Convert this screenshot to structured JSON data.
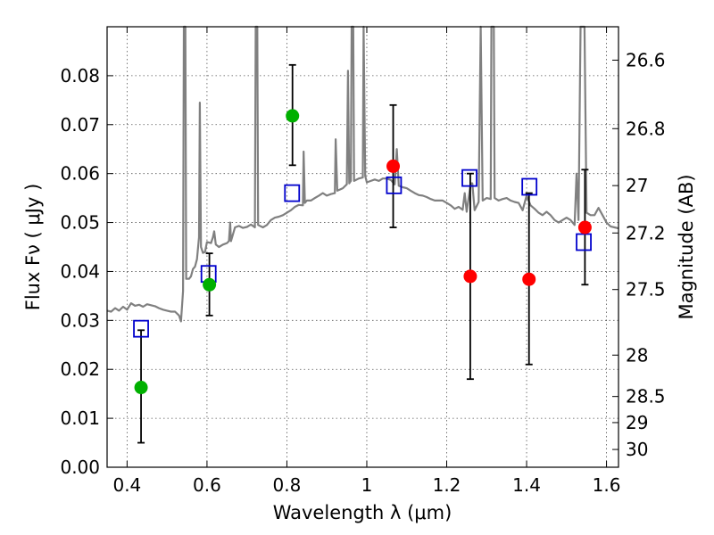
{
  "chart_data": {
    "type": "scatter",
    "xlabel": "Wavelength  λ (μm)",
    "ylabel_left": "Flux  Fν  ( μJy )",
    "ylabel_right": "Magnitude (AB)",
    "xlim": [
      0.35,
      1.63
    ],
    "ylim": [
      0.0,
      0.09
    ],
    "grid": true,
    "x_ticks": [
      {
        "v": 0.4,
        "label": "0.4"
      },
      {
        "v": 0.6,
        "label": "0.6"
      },
      {
        "v": 0.8,
        "label": "0.8"
      },
      {
        "v": 1.0,
        "label": "1"
      },
      {
        "v": 1.2,
        "label": "1.2"
      },
      {
        "v": 1.4,
        "label": "1.4"
      },
      {
        "v": 1.6,
        "label": "1.6"
      }
    ],
    "y_ticks": [
      {
        "v": 0.0,
        "label": "0.00"
      },
      {
        "v": 0.01,
        "label": "0.01"
      },
      {
        "v": 0.02,
        "label": "0.02"
      },
      {
        "v": 0.03,
        "label": "0.03"
      },
      {
        "v": 0.04,
        "label": "0.04"
      },
      {
        "v": 0.05,
        "label": "0.05"
      },
      {
        "v": 0.06,
        "label": "0.06"
      },
      {
        "v": 0.07,
        "label": "0.07"
      },
      {
        "v": 0.08,
        "label": "0.08"
      }
    ],
    "mag_ticks": [
      {
        "mag": 26.6,
        "label": "26.6"
      },
      {
        "mag": 26.8,
        "label": "26.8"
      },
      {
        "mag": 27.0,
        "label": "27"
      },
      {
        "mag": 27.2,
        "label": "27.2"
      },
      {
        "mag": 27.5,
        "label": "27.5"
      },
      {
        "mag": 28.0,
        "label": "28"
      },
      {
        "mag": 28.5,
        "label": "28.5"
      },
      {
        "mag": 29.0,
        "label": "29"
      },
      {
        "mag": 30.0,
        "label": "30"
      }
    ],
    "colors": {
      "spectrum": "#808080",
      "green": "#00b000",
      "red": "#ff0000",
      "model_box": "#0000cc",
      "errorbar": "#000000"
    },
    "spectrum": {
      "name": "",
      "points": [
        [
          0.35,
          0.032
        ],
        [
          0.36,
          0.0318
        ],
        [
          0.37,
          0.0325
        ],
        [
          0.38,
          0.032
        ],
        [
          0.39,
          0.0328
        ],
        [
          0.4,
          0.0322
        ],
        [
          0.41,
          0.0335
        ],
        [
          0.42,
          0.033
        ],
        [
          0.43,
          0.0332
        ],
        [
          0.44,
          0.0328
        ],
        [
          0.45,
          0.0333
        ],
        [
          0.46,
          0.0331
        ],
        [
          0.47,
          0.0329
        ],
        [
          0.48,
          0.0325
        ],
        [
          0.49,
          0.0322
        ],
        [
          0.5,
          0.032
        ],
        [
          0.51,
          0.0318
        ],
        [
          0.52,
          0.0318
        ],
        [
          0.53,
          0.031
        ],
        [
          0.535,
          0.0298
        ],
        [
          0.54,
          0.036
        ],
        [
          0.542,
          0.09
        ],
        [
          0.546,
          0.09
        ],
        [
          0.548,
          0.0385
        ],
        [
          0.555,
          0.0385
        ],
        [
          0.56,
          0.039
        ],
        [
          0.565,
          0.0405
        ],
        [
          0.57,
          0.041
        ],
        [
          0.575,
          0.0425
        ],
        [
          0.58,
          0.047
        ],
        [
          0.582,
          0.0745
        ],
        [
          0.585,
          0.045
        ],
        [
          0.59,
          0.0438
        ],
        [
          0.595,
          0.044
        ],
        [
          0.6,
          0.046
        ],
        [
          0.61,
          0.0458
        ],
        [
          0.615,
          0.047
        ],
        [
          0.618,
          0.0482
        ],
        [
          0.622,
          0.0455
        ],
        [
          0.63,
          0.045
        ],
        [
          0.64,
          0.0455
        ],
        [
          0.65,
          0.0458
        ],
        [
          0.655,
          0.0462
        ],
        [
          0.658,
          0.05
        ],
        [
          0.66,
          0.0462
        ],
        [
          0.67,
          0.049
        ],
        [
          0.68,
          0.0493
        ],
        [
          0.69,
          0.0489
        ],
        [
          0.7,
          0.0491
        ],
        [
          0.71,
          0.0496
        ],
        [
          0.72,
          0.049
        ],
        [
          0.722,
          0.09
        ],
        [
          0.726,
          0.09
        ],
        [
          0.728,
          0.0495
        ],
        [
          0.74,
          0.049
        ],
        [
          0.75,
          0.0495
        ],
        [
          0.76,
          0.0505
        ],
        [
          0.77,
          0.051
        ],
        [
          0.78,
          0.0512
        ],
        [
          0.79,
          0.0515
        ],
        [
          0.8,
          0.052
        ],
        [
          0.81,
          0.0525
        ],
        [
          0.82,
          0.0532
        ],
        [
          0.83,
          0.0536
        ],
        [
          0.84,
          0.0535
        ],
        [
          0.842,
          0.0645
        ],
        [
          0.845,
          0.054
        ],
        [
          0.85,
          0.0545
        ],
        [
          0.86,
          0.0545
        ],
        [
          0.87,
          0.055
        ],
        [
          0.88,
          0.0555
        ],
        [
          0.89,
          0.056
        ],
        [
          0.9,
          0.0555
        ],
        [
          0.91,
          0.0558
        ],
        [
          0.92,
          0.056
        ],
        [
          0.922,
          0.067
        ],
        [
          0.926,
          0.0565
        ],
        [
          0.94,
          0.057
        ],
        [
          0.95,
          0.0578
        ],
        [
          0.953,
          0.081
        ],
        [
          0.956,
          0.058
        ],
        [
          0.96,
          0.0585
        ],
        [
          0.962,
          0.09
        ],
        [
          0.966,
          0.09
        ],
        [
          0.968,
          0.0585
        ],
        [
          0.98,
          0.059
        ],
        [
          0.99,
          0.0592
        ],
        [
          0.992,
          0.09
        ],
        [
          0.996,
          0.0595
        ],
        [
          1.0,
          0.0582
        ],
        [
          1.01,
          0.0585
        ],
        [
          1.02,
          0.0588
        ],
        [
          1.03,
          0.0585
        ],
        [
          1.04,
          0.059
        ],
        [
          1.05,
          0.059
        ],
        [
          1.06,
          0.0587
        ],
        [
          1.07,
          0.0578
        ],
        [
          1.075,
          0.065
        ],
        [
          1.08,
          0.0575
        ],
        [
          1.09,
          0.0572
        ],
        [
          1.1,
          0.057
        ],
        [
          1.11,
          0.0565
        ],
        [
          1.12,
          0.056
        ],
        [
          1.13,
          0.0556
        ],
        [
          1.14,
          0.0555
        ],
        [
          1.15,
          0.0552
        ],
        [
          1.16,
          0.0548
        ],
        [
          1.17,
          0.0545
        ],
        [
          1.18,
          0.0545
        ],
        [
          1.19,
          0.0545
        ],
        [
          1.2,
          0.054
        ],
        [
          1.21,
          0.0535
        ],
        [
          1.22,
          0.0528
        ],
        [
          1.23,
          0.0532
        ],
        [
          1.24,
          0.0526
        ],
        [
          1.245,
          0.056
        ],
        [
          1.25,
          0.0522
        ],
        [
          1.26,
          0.058
        ],
        [
          1.264,
          0.058
        ],
        [
          1.27,
          0.0525
        ],
        [
          1.28,
          0.0542
        ],
        [
          1.285,
          0.09
        ],
        [
          1.29,
          0.0545
        ],
        [
          1.3,
          0.055
        ],
        [
          1.31,
          0.0548
        ],
        [
          1.312,
          0.09
        ],
        [
          1.318,
          0.09
        ],
        [
          1.32,
          0.055
        ],
        [
          1.33,
          0.0545
        ],
        [
          1.34,
          0.0548
        ],
        [
          1.35,
          0.055
        ],
        [
          1.36,
          0.0545
        ],
        [
          1.37,
          0.0542
        ],
        [
          1.38,
          0.054
        ],
        [
          1.39,
          0.0525
        ],
        [
          1.4,
          0.0555
        ],
        [
          1.41,
          0.0535
        ],
        [
          1.42,
          0.0528
        ],
        [
          1.43,
          0.052
        ],
        [
          1.44,
          0.0515
        ],
        [
          1.45,
          0.0522
        ],
        [
          1.46,
          0.0515
        ],
        [
          1.47,
          0.0505
        ],
        [
          1.48,
          0.05
        ],
        [
          1.49,
          0.0505
        ],
        [
          1.5,
          0.051
        ],
        [
          1.51,
          0.0505
        ],
        [
          1.52,
          0.0495
        ],
        [
          1.525,
          0.06
        ],
        [
          1.53,
          0.0505
        ],
        [
          1.535,
          0.09
        ],
        [
          1.545,
          0.09
        ],
        [
          1.55,
          0.052
        ],
        [
          1.56,
          0.0515
        ],
        [
          1.57,
          0.0515
        ],
        [
          1.58,
          0.053
        ],
        [
          1.59,
          0.0515
        ],
        [
          1.6,
          0.05
        ],
        [
          1.61,
          0.0492
        ],
        [
          1.62,
          0.049
        ],
        [
          1.63,
          0.0488
        ]
      ]
    },
    "observed": [
      {
        "x": 0.435,
        "y": 0.0163,
        "yerr_lo": 0.005,
        "yerr_hi": 0.028,
        "color": "green"
      },
      {
        "x": 0.606,
        "y": 0.0373,
        "yerr_lo": 0.031,
        "yerr_hi": 0.0437,
        "color": "green"
      },
      {
        "x": 0.814,
        "y": 0.0718,
        "yerr_lo": 0.0617,
        "yerr_hi": 0.0822,
        "color": "green"
      },
      {
        "x": 1.066,
        "y": 0.0615,
        "yerr_lo": 0.049,
        "yerr_hi": 0.074,
        "color": "red"
      },
      {
        "x": 1.259,
        "y": 0.039,
        "yerr_lo": 0.018,
        "yerr_hi": 0.06,
        "color": "red"
      },
      {
        "x": 1.406,
        "y": 0.0384,
        "yerr_lo": 0.021,
        "yerr_hi": 0.056,
        "color": "red"
      },
      {
        "x": 1.546,
        "y": 0.049,
        "yerr_lo": 0.0373,
        "yerr_hi": 0.0608,
        "color": "red"
      }
    ],
    "model": [
      {
        "x": 0.435,
        "y": 0.0283
      },
      {
        "x": 0.604,
        "y": 0.0395
      },
      {
        "x": 0.813,
        "y": 0.056
      },
      {
        "x": 1.068,
        "y": 0.0576
      },
      {
        "x": 1.257,
        "y": 0.0591
      },
      {
        "x": 1.407,
        "y": 0.0573
      },
      {
        "x": 1.543,
        "y": 0.046
      }
    ]
  }
}
